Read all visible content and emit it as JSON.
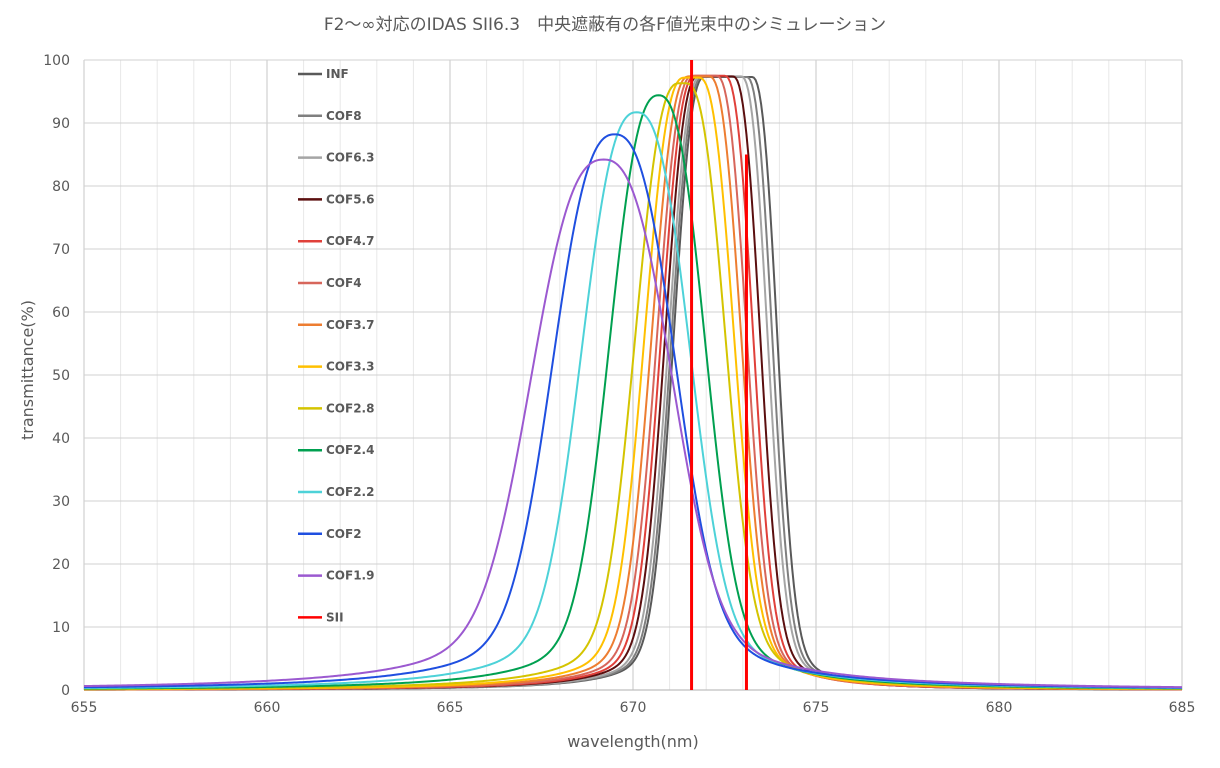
{
  "chart_data": {
    "type": "line",
    "title": "F2～∞対応のIDAS SII6.3　中央遮蔽有の各F値光束中のシミュレーション",
    "xlabel": "wavelength(nm)",
    "ylabel": "transmittance(%)",
    "xlim": [
      655,
      685
    ],
    "ylim": [
      0,
      100
    ],
    "xticks": [
      655,
      660,
      665,
      670,
      675,
      680,
      685
    ],
    "yticks": [
      0,
      10,
      20,
      30,
      40,
      50,
      60,
      70,
      80,
      90,
      100
    ],
    "grid": true,
    "legend_position": "left-inside",
    "series": [
      {
        "name": "INF",
        "color": "#595959",
        "peak_x": 672.6,
        "peak_y": 97.3,
        "plateau": 1.3,
        "rise": 0.75,
        "fall": 0.62,
        "tail": 0.22
      },
      {
        "name": "COF8",
        "color": "#7f7f7f",
        "peak_x": 672.5,
        "peak_y": 97.3,
        "plateau": 1.2,
        "rise": 0.76,
        "fall": 0.63,
        "tail": 0.22
      },
      {
        "name": "COF6.3",
        "color": "#a5a5a5",
        "peak_x": 672.4,
        "peak_y": 97.4,
        "plateau": 1.1,
        "rise": 0.78,
        "fall": 0.65,
        "tail": 0.22
      },
      {
        "name": "COF5.6",
        "color": "#5b0f0f",
        "peak_x": 672.25,
        "peak_y": 97.4,
        "plateau": 0.95,
        "rise": 0.8,
        "fall": 0.67,
        "tail": 0.23
      },
      {
        "name": "COF4.7",
        "color": "#e0403a",
        "peak_x": 672.1,
        "peak_y": 97.5,
        "plateau": 0.8,
        "rise": 0.83,
        "fall": 0.7,
        "tail": 0.23
      },
      {
        "name": "COF4",
        "color": "#d7665b",
        "peak_x": 671.95,
        "peak_y": 97.5,
        "plateau": 0.65,
        "rise": 0.86,
        "fall": 0.74,
        "tail": 0.24
      },
      {
        "name": "COF3.7",
        "color": "#ed7d31",
        "peak_x": 671.8,
        "peak_y": 97.4,
        "plateau": 0.55,
        "rise": 0.9,
        "fall": 0.78,
        "tail": 0.25
      },
      {
        "name": "COF3.3",
        "color": "#ffc000",
        "peak_x": 671.6,
        "peak_y": 97.2,
        "plateau": 0.4,
        "rise": 0.96,
        "fall": 0.85,
        "tail": 0.26
      },
      {
        "name": "COF2.8",
        "color": "#d4c400",
        "peak_x": 671.35,
        "peak_y": 96.3,
        "plateau": 0.2,
        "rise": 1.05,
        "fall": 0.95,
        "tail": 0.28
      },
      {
        "name": "COF2.4",
        "color": "#00a050",
        "peak_x": 670.7,
        "peak_y": 94.4,
        "plateau": 0,
        "rise": 1.18,
        "fall": 1.12,
        "tail": 0.3
      },
      {
        "name": "COF2.2",
        "color": "#4dd2d8",
        "peak_x": 670.1,
        "peak_y": 91.7,
        "plateau": 0,
        "rise": 1.32,
        "fall": 1.28,
        "tail": 0.32
      },
      {
        "name": "COF2",
        "color": "#1f4fe0",
        "peak_x": 669.5,
        "peak_y": 88.2,
        "plateau": 0,
        "rise": 1.48,
        "fall": 1.45,
        "tail": 0.34
      },
      {
        "name": "COF1.9",
        "color": "#9b59d0",
        "peak_x": 669.2,
        "peak_y": 84.2,
        "plateau": 0,
        "rise": 1.72,
        "fall": 1.62,
        "tail": 0.36
      },
      {
        "name": "SII",
        "color": "#ff0000",
        "kind": "vlines",
        "lines": [
          {
            "x": 671.6,
            "y_top": 100
          },
          {
            "x": 673.1,
            "y_top": 85
          }
        ]
      }
    ]
  }
}
